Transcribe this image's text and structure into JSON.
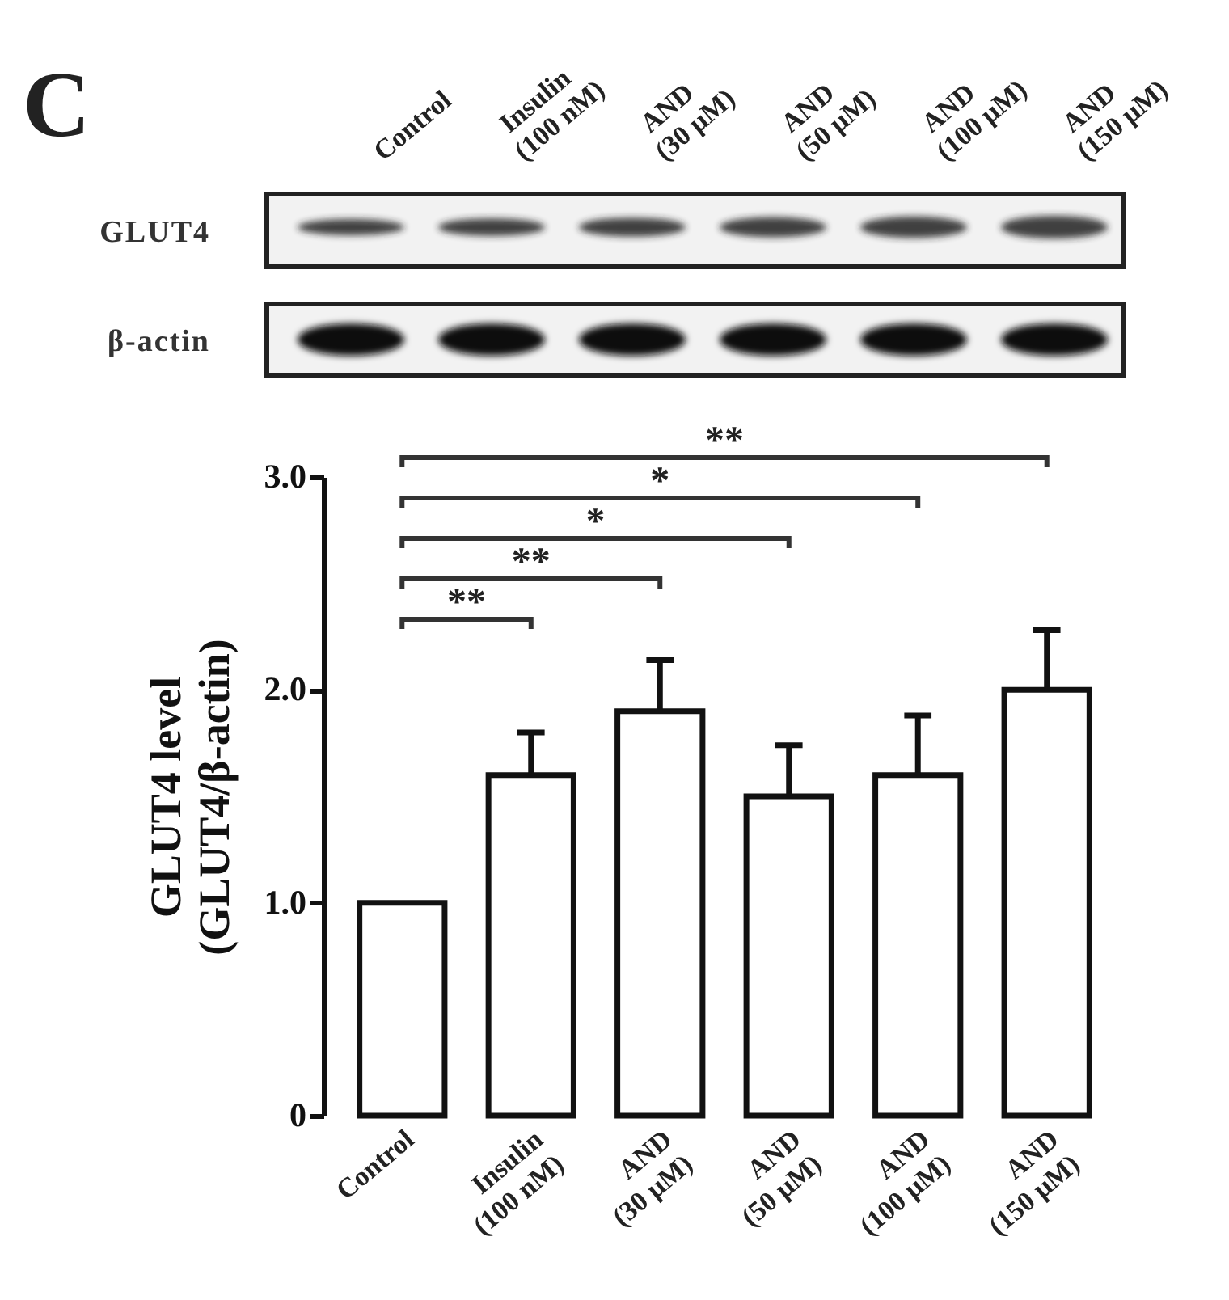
{
  "chart_data": {
    "type": "bar",
    "title": "C",
    "ylabel": "GLUT4 level (GLUT4/β-actin)",
    "categories": [
      "Control",
      "Insulin (100 nM)",
      "AND (30 μM)",
      "AND (50 μM)",
      "AND (100 μM)",
      "AND (150 μM)"
    ],
    "values": [
      1.0,
      1.6,
      1.9,
      1.5,
      1.6,
      2.0
    ],
    "errors": [
      null,
      0.2,
      0.24,
      0.24,
      0.28,
      0.28
    ],
    "color": "#ffffff",
    "ylim": [
      0,
      3.0
    ],
    "yticks": [
      0,
      {
        "value": 1,
        "label": "1.0"
      },
      {
        "value": 2,
        "label": "2.0"
      },
      {
        "value": 3,
        "label": "3.0"
      }
    ],
    "annotations": [
      "GLUT4",
      "β-actin",
      "**",
      "**",
      "*",
      "*",
      "**"
    ]
  }
}
